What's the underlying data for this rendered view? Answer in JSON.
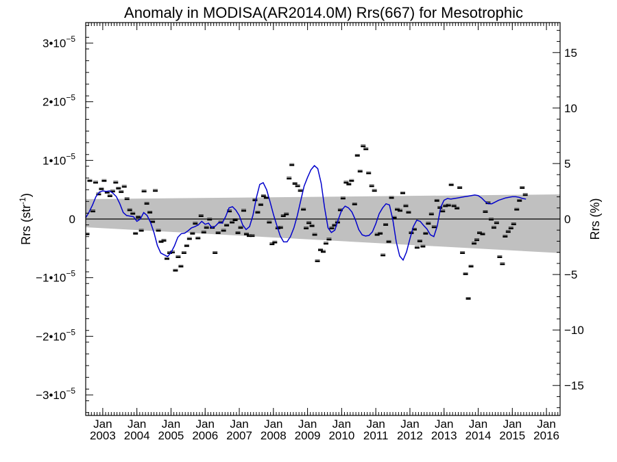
{
  "chart_data": {
    "type": "scatter",
    "title": "Anomaly in MODISA(AR2014.0M) Rrs(667) for Mesotrophic",
    "ylabel_left_base": "Rrs (str",
    "ylabel_left_sup": "-1",
    "ylabel_left_close": ")",
    "ylabel_right": "Rrs (%)",
    "xlim": [
      2002.5,
      2016.4
    ],
    "ylim_left": [
      -3.35e-05,
      3.35e-05
    ],
    "ylim_right": [
      -17.7,
      17.7
    ],
    "left_ticks": [
      {
        "v": 3e-05,
        "m": "3•10",
        "e": "−5"
      },
      {
        "v": 2e-05,
        "m": "2•10",
        "e": "−5"
      },
      {
        "v": 1e-05,
        "m": "1•10",
        "e": "−5"
      },
      {
        "v": 0,
        "m": "0",
        "e": ""
      },
      {
        "v": -1e-05,
        "m": "−1•10",
        "e": "−5"
      },
      {
        "v": -2e-05,
        "m": "−2•10",
        "e": "−5"
      },
      {
        "v": -3e-05,
        "m": "−3•10",
        "e": "−5"
      }
    ],
    "right_ticks": [
      {
        "v": 15,
        "label": "15"
      },
      {
        "v": 10,
        "label": "10"
      },
      {
        "v": 5,
        "label": "5"
      },
      {
        "v": 0,
        "label": "0"
      },
      {
        "v": -5,
        "label": "−5"
      },
      {
        "v": -10,
        "label": "−10"
      },
      {
        "v": -15,
        "label": "−15"
      }
    ],
    "x_ticks": [
      {
        "v": 2003.0,
        "month": "Jan",
        "year": "2003"
      },
      {
        "v": 2004.0,
        "month": "Jan",
        "year": "2004"
      },
      {
        "v": 2005.0,
        "month": "Jan",
        "year": "2005"
      },
      {
        "v": 2006.0,
        "month": "Jan",
        "year": "2006"
      },
      {
        "v": 2007.0,
        "month": "Jan",
        "year": "2007"
      },
      {
        "v": 2008.0,
        "month": "Jan",
        "year": "2008"
      },
      {
        "v": 2009.0,
        "month": "Jan",
        "year": "2009"
      },
      {
        "v": 2010.0,
        "month": "Jan",
        "year": "2010"
      },
      {
        "v": 2011.0,
        "month": "Jan",
        "year": "2011"
      },
      {
        "v": 2012.0,
        "month": "Jan",
        "year": "2012"
      },
      {
        "v": 2013.0,
        "month": "Jan",
        "year": "2013"
      },
      {
        "v": 2014.0,
        "month": "Jan",
        "year": "2014"
      },
      {
        "v": 2015.0,
        "month": "Jan",
        "year": "2015"
      },
      {
        "v": 2016.0,
        "month": "Jan",
        "year": "2016"
      }
    ],
    "band": {
      "x": [
        2002.5,
        2016.4
      ],
      "upper": [
        3.4e-06,
        4.2e-06
      ],
      "lower": [
        -1.4e-06,
        -5.8e-06
      ],
      "color": "#c0c0c0"
    },
    "zero_line": 0,
    "colors": {
      "points": "#000000",
      "smooth": "#0000cc"
    },
    "points": [
      {
        "x": 2002.54,
        "y": -2.6e-06
      },
      {
        "x": 2002.62,
        "y": 6.5e-06
      },
      {
        "x": 2002.71,
        "y": 1.3e-06
      },
      {
        "x": 2002.79,
        "y": 6.2e-06
      },
      {
        "x": 2002.88,
        "y": 4.2e-06
      },
      {
        "x": 2002.96,
        "y": 5.1e-06
      },
      {
        "x": 2003.04,
        "y": 6.5e-06
      },
      {
        "x": 2003.13,
        "y": 4.5e-06
      },
      {
        "x": 2003.21,
        "y": 3.9e-06
      },
      {
        "x": 2003.29,
        "y": 4.7e-06
      },
      {
        "x": 2003.38,
        "y": 6.2e-06
      },
      {
        "x": 2003.46,
        "y": 5.2e-06
      },
      {
        "x": 2003.54,
        "y": 4.6e-06
      },
      {
        "x": 2003.63,
        "y": 5.5e-06
      },
      {
        "x": 2003.71,
        "y": 3.4e-06
      },
      {
        "x": 2003.79,
        "y": 1.5e-06
      },
      {
        "x": 2003.88,
        "y": 9e-07
      },
      {
        "x": 2003.96,
        "y": -2.5e-06
      },
      {
        "x": 2004.04,
        "y": 3e-07
      },
      {
        "x": 2004.13,
        "y": -2e-06
      },
      {
        "x": 2004.21,
        "y": 4.7e-06
      },
      {
        "x": 2004.29,
        "y": 2.6e-06
      },
      {
        "x": 2004.38,
        "y": 1.1e-06
      },
      {
        "x": 2004.46,
        "y": -5e-07
      },
      {
        "x": 2004.54,
        "y": 4.8e-06
      },
      {
        "x": 2004.63,
        "y": -2e-06
      },
      {
        "x": 2004.71,
        "y": -3.9e-06
      },
      {
        "x": 2004.79,
        "y": -3.7e-06
      },
      {
        "x": 2004.88,
        "y": -6.8e-06
      },
      {
        "x": 2004.96,
        "y": -5.8e-06
      },
      {
        "x": 2005.04,
        "y": -5.7e-06
      },
      {
        "x": 2005.13,
        "y": -8.8e-06
      },
      {
        "x": 2005.21,
        "y": -6.5e-06
      },
      {
        "x": 2005.29,
        "y": -8.1e-06
      },
      {
        "x": 2005.38,
        "y": -5.8e-06
      },
      {
        "x": 2005.46,
        "y": -4.6e-06
      },
      {
        "x": 2005.54,
        "y": -3.4e-06
      },
      {
        "x": 2005.63,
        "y": -2.5e-06
      },
      {
        "x": 2005.71,
        "y": -8e-07
      },
      {
        "x": 2005.79,
        "y": -3.3e-06
      },
      {
        "x": 2005.88,
        "y": 5e-07
      },
      {
        "x": 2005.96,
        "y": -2.3e-06
      },
      {
        "x": 2006.04,
        "y": -1.5e-06
      },
      {
        "x": 2006.13,
        "y": -1e-07
      },
      {
        "x": 2006.21,
        "y": -1.5e-06
      },
      {
        "x": 2006.29,
        "y": -5.8e-06
      },
      {
        "x": 2006.38,
        "y": -2.4e-06
      },
      {
        "x": 2006.46,
        "y": -6e-07
      },
      {
        "x": 2006.54,
        "y": -2e-06
      },
      {
        "x": 2006.63,
        "y": -1.1e-06
      },
      {
        "x": 2006.71,
        "y": 1.3e-06
      },
      {
        "x": 2006.79,
        "y": -6e-07
      },
      {
        "x": 2006.88,
        "y": -2e-07
      },
      {
        "x": 2006.96,
        "y": -2.4e-06
      },
      {
        "x": 2007.04,
        "y": -1.5e-06
      },
      {
        "x": 2007.13,
        "y": 1.4e-06
      },
      {
        "x": 2007.21,
        "y": -2.6e-06
      },
      {
        "x": 2007.29,
        "y": -2.9e-06
      },
      {
        "x": 2007.38,
        "y": -2.9e-06
      },
      {
        "x": 2007.46,
        "y": 3.2e-06
      },
      {
        "x": 2007.54,
        "y": 1.1e-06
      },
      {
        "x": 2007.63,
        "y": 2.4e-06
      },
      {
        "x": 2007.71,
        "y": 3.9e-06
      },
      {
        "x": 2007.79,
        "y": 3.6e-06
      },
      {
        "x": 2007.88,
        "y": -6e-07
      },
      {
        "x": 2007.96,
        "y": -4.3e-06
      },
      {
        "x": 2008.04,
        "y": -4e-06
      },
      {
        "x": 2008.13,
        "y": -1.6e-06
      },
      {
        "x": 2008.21,
        "y": -1.5e-06
      },
      {
        "x": 2008.29,
        "y": 5e-07
      },
      {
        "x": 2008.38,
        "y": 8e-07
      },
      {
        "x": 2008.46,
        "y": 6.9e-06
      },
      {
        "x": 2008.54,
        "y": 9.2e-06
      },
      {
        "x": 2008.63,
        "y": 6e-06
      },
      {
        "x": 2008.71,
        "y": 5.6e-06
      },
      {
        "x": 2008.79,
        "y": 4.8e-06
      },
      {
        "x": 2008.88,
        "y": 1.6e-06
      },
      {
        "x": 2008.96,
        "y": -1.6e-06
      },
      {
        "x": 2009.04,
        "y": -7e-07
      },
      {
        "x": 2009.13,
        "y": -1.2e-06
      },
      {
        "x": 2009.21,
        "y": -2.7e-06
      },
      {
        "x": 2009.29,
        "y": -7.2e-06
      },
      {
        "x": 2009.38,
        "y": -5.3e-06
      },
      {
        "x": 2009.46,
        "y": -5.6e-06
      },
      {
        "x": 2009.54,
        "y": -4.2e-06
      },
      {
        "x": 2009.63,
        "y": -3.5e-06
      },
      {
        "x": 2009.71,
        "y": -1.6e-06
      },
      {
        "x": 2009.79,
        "y": -1.1e-06
      },
      {
        "x": 2009.88,
        "y": -6e-07
      },
      {
        "x": 2009.96,
        "y": 1.5e-06
      },
      {
        "x": 2010.04,
        "y": 3.5e-06
      },
      {
        "x": 2010.13,
        "y": 6.2e-06
      },
      {
        "x": 2010.21,
        "y": 5.9e-06
      },
      {
        "x": 2010.29,
        "y": 6.5e-06
      },
      {
        "x": 2010.38,
        "y": 2.5e-06
      },
      {
        "x": 2010.46,
        "y": 1.08e-05
      },
      {
        "x": 2010.54,
        "y": 8.1e-06
      },
      {
        "x": 2010.63,
        "y": 1.24e-05
      },
      {
        "x": 2010.71,
        "y": 1.19e-05
      },
      {
        "x": 2010.79,
        "y": 7.8e-06
      },
      {
        "x": 2010.88,
        "y": 5.6e-06
      },
      {
        "x": 2010.96,
        "y": 4.8e-06
      },
      {
        "x": 2011.04,
        "y": -2.7e-06
      },
      {
        "x": 2011.13,
        "y": -2.5e-06
      },
      {
        "x": 2011.21,
        "y": -6.2e-06
      },
      {
        "x": 2011.29,
        "y": -1e-06
      },
      {
        "x": 2011.38,
        "y": -3.9e-06
      },
      {
        "x": 2011.46,
        "y": 3.6e-06
      },
      {
        "x": 2011.54,
        "y": 2e-07
      },
      {
        "x": 2011.63,
        "y": 1.6e-06
      },
      {
        "x": 2011.71,
        "y": 1.4e-06
      },
      {
        "x": 2011.79,
        "y": 4.4e-06
      },
      {
        "x": 2011.88,
        "y": 2.2e-06
      },
      {
        "x": 2011.96,
        "y": 1.1e-06
      },
      {
        "x": 2012.04,
        "y": -2.4e-06
      },
      {
        "x": 2012.13,
        "y": -1.8e-06
      },
      {
        "x": 2012.21,
        "y": -4.9e-06
      },
      {
        "x": 2012.29,
        "y": -3.8e-06
      },
      {
        "x": 2012.38,
        "y": -4.7e-06
      },
      {
        "x": 2012.46,
        "y": -2.5e-06
      },
      {
        "x": 2012.54,
        "y": -8e-07
      },
      {
        "x": 2012.63,
        "y": 8e-07
      },
      {
        "x": 2012.71,
        "y": -1.4e-06
      },
      {
        "x": 2012.79,
        "y": 3.1e-06
      },
      {
        "x": 2012.88,
        "y": 1.9e-06
      },
      {
        "x": 2012.96,
        "y": 1.3e-06
      },
      {
        "x": 2013.04,
        "y": 2.2e-06
      },
      {
        "x": 2013.13,
        "y": 2.3e-06
      },
      {
        "x": 2013.21,
        "y": 5.8e-06
      },
      {
        "x": 2013.29,
        "y": 2.2e-06
      },
      {
        "x": 2013.38,
        "y": 1.8e-06
      },
      {
        "x": 2013.46,
        "y": 5.3e-06
      },
      {
        "x": 2013.54,
        "y": -5.8e-06
      },
      {
        "x": 2013.63,
        "y": -9.4e-06
      },
      {
        "x": 2013.71,
        "y": -1.36e-05
      },
      {
        "x": 2013.79,
        "y": -8.1e-06
      },
      {
        "x": 2013.88,
        "y": -4.2e-06
      },
      {
        "x": 2013.96,
        "y": -3.6e-06
      },
      {
        "x": 2014.04,
        "y": -2.4e-06
      },
      {
        "x": 2014.13,
        "y": -2.6e-06
      },
      {
        "x": 2014.21,
        "y": 1.2e-06
      },
      {
        "x": 2014.29,
        "y": 2.7e-06
      },
      {
        "x": 2014.38,
        "y": -1e-07
      },
      {
        "x": 2014.46,
        "y": -1.5e-06
      },
      {
        "x": 2014.54,
        "y": -7e-07
      },
      {
        "x": 2014.63,
        "y": -6.5e-06
      },
      {
        "x": 2014.71,
        "y": -7.7e-06
      },
      {
        "x": 2014.79,
        "y": -3e-06
      },
      {
        "x": 2014.88,
        "y": -2.2e-06
      },
      {
        "x": 2014.96,
        "y": -1.6e-06
      },
      {
        "x": 2015.04,
        "y": -9e-07
      },
      {
        "x": 2015.13,
        "y": 1.6e-06
      },
      {
        "x": 2015.21,
        "y": 3.1e-06
      },
      {
        "x": 2015.29,
        "y": 5.3e-06
      },
      {
        "x": 2015.38,
        "y": 4.1e-06
      }
    ],
    "smooth": {
      "x": [
        2002.5,
        2002.6,
        2002.7,
        2002.8,
        2002.9,
        2003.0,
        2003.1,
        2003.2,
        2003.3,
        2003.4,
        2003.5,
        2003.6,
        2003.7,
        2003.8,
        2003.9,
        2004.0,
        2004.1,
        2004.2,
        2004.3,
        2004.4,
        2004.5,
        2004.6,
        2004.7,
        2004.8,
        2004.9,
        2005.0,
        2005.1,
        2005.2,
        2005.3,
        2005.4,
        2005.5,
        2005.6,
        2005.7,
        2005.8,
        2005.9,
        2006.0,
        2006.1,
        2006.2,
        2006.3,
        2006.4,
        2006.5,
        2006.6,
        2006.7,
        2006.8,
        2006.9,
        2007.0,
        2007.1,
        2007.2,
        2007.3,
        2007.4,
        2007.5,
        2007.6,
        2007.7,
        2007.8,
        2007.9,
        2008.0,
        2008.1,
        2008.2,
        2008.3,
        2008.4,
        2008.5,
        2008.6,
        2008.7,
        2008.8,
        2008.9,
        2009.0,
        2009.1,
        2009.2,
        2009.3,
        2009.4,
        2009.5,
        2009.6,
        2009.7,
        2009.8,
        2009.9,
        2010.0,
        2010.1,
        2010.2,
        2010.3,
        2010.4,
        2010.5,
        2010.6,
        2010.7,
        2010.8,
        2010.9,
        2011.0,
        2011.1,
        2011.2,
        2011.3,
        2011.4,
        2011.5,
        2011.6,
        2011.7,
        2011.8,
        2011.9,
        2012.0,
        2012.1,
        2012.2,
        2012.3,
        2012.4,
        2012.5,
        2012.6,
        2012.7,
        2012.8,
        2012.9,
        2013.0,
        2013.1,
        2013.2,
        2013.3,
        2013.4,
        2013.5,
        2013.6,
        2013.7,
        2013.8,
        2013.9,
        2014.0,
        2014.1,
        2014.2,
        2014.3,
        2014.4,
        2014.5,
        2014.6,
        2014.7,
        2014.8,
        2014.9,
        2015.0,
        2015.1,
        2015.2,
        2015.3,
        2015.4
      ],
      "y": [
        2e-07,
        1.2e-06,
        2.4e-06,
        3.8e-06,
        4.6e-06,
        4.8e-06,
        4.7e-06,
        4.8e-06,
        4.4e-06,
        3.8e-06,
        2.6e-06,
        1.1e-06,
        6e-07,
        5e-07,
        4e-07,
        -4e-07,
        0.0,
        1.1e-06,
        6e-07,
        -6e-07,
        -2.3e-06,
        -4.5e-06,
        -5.8e-06,
        -6.1e-06,
        -6.4e-06,
        -5.7e-06,
        -4.6e-06,
        -3.1e-06,
        -2.5e-06,
        -2.4e-06,
        -2e-06,
        -1.5e-06,
        -1.3e-06,
        -1e-06,
        -4e-07,
        -9e-07,
        -7e-07,
        -1.5e-06,
        -1.2e-06,
        -6e-07,
        -7e-07,
        4e-07,
        1.9e-06,
        2.1e-06,
        1.5e-06,
        6e-07,
        -1e-06,
        -1.8e-06,
        -1.3e-06,
        6e-07,
        3.6e-06,
        5.9e-06,
        6.2e-06,
        5e-06,
        3e-06,
        8e-07,
        -1.1e-06,
        -2.9e-06,
        -3.9e-06,
        -3.9e-06,
        -3e-06,
        -1.5e-06,
        6e-07,
        3.1e-06,
        5.6e-06,
        7.1e-06,
        8.4e-06,
        9.1e-06,
        8.6e-06,
        6.1e-06,
        1.9e-06,
        -1.5e-06,
        -2.3e-06,
        -1.9e-06,
        -1e-07,
        1.5e-06,
        2.2e-06,
        1.9e-06,
        1.2e-06,
        -1e-07,
        -1.8e-06,
        -2.7e-06,
        -2.9e-06,
        -2.8e-06,
        -2.2e-06,
        -8e-07,
        9e-07,
        1.9e-06,
        2.6e-06,
        2.4e-06,
        -2e-07,
        -3.9e-06,
        -6.3e-06,
        -7e-06,
        -5.6e-06,
        -3.4e-06,
        -1.3e-06,
        -2e-07,
        -4e-07,
        -1.1e-06,
        -1.7e-06,
        -2.7e-06,
        -3e-06,
        -1.2e-06,
        2e-06,
        3.2e-06,
        3.5e-06,
        3.4e-06,
        3.5e-06,
        3.6e-06,
        3.7e-06,
        3.8e-06,
        3.9e-06,
        4e-06,
        4.1e-06,
        4e-06,
        3.6e-06,
        3e-06,
        2.6e-06,
        2.6e-06,
        2.9e-06,
        3.2e-06,
        3.4e-06,
        3.6e-06,
        3.7e-06,
        3.8e-06,
        3.8e-06,
        3.7e-06,
        3.5e-06,
        3.4e-06
      ]
    }
  }
}
